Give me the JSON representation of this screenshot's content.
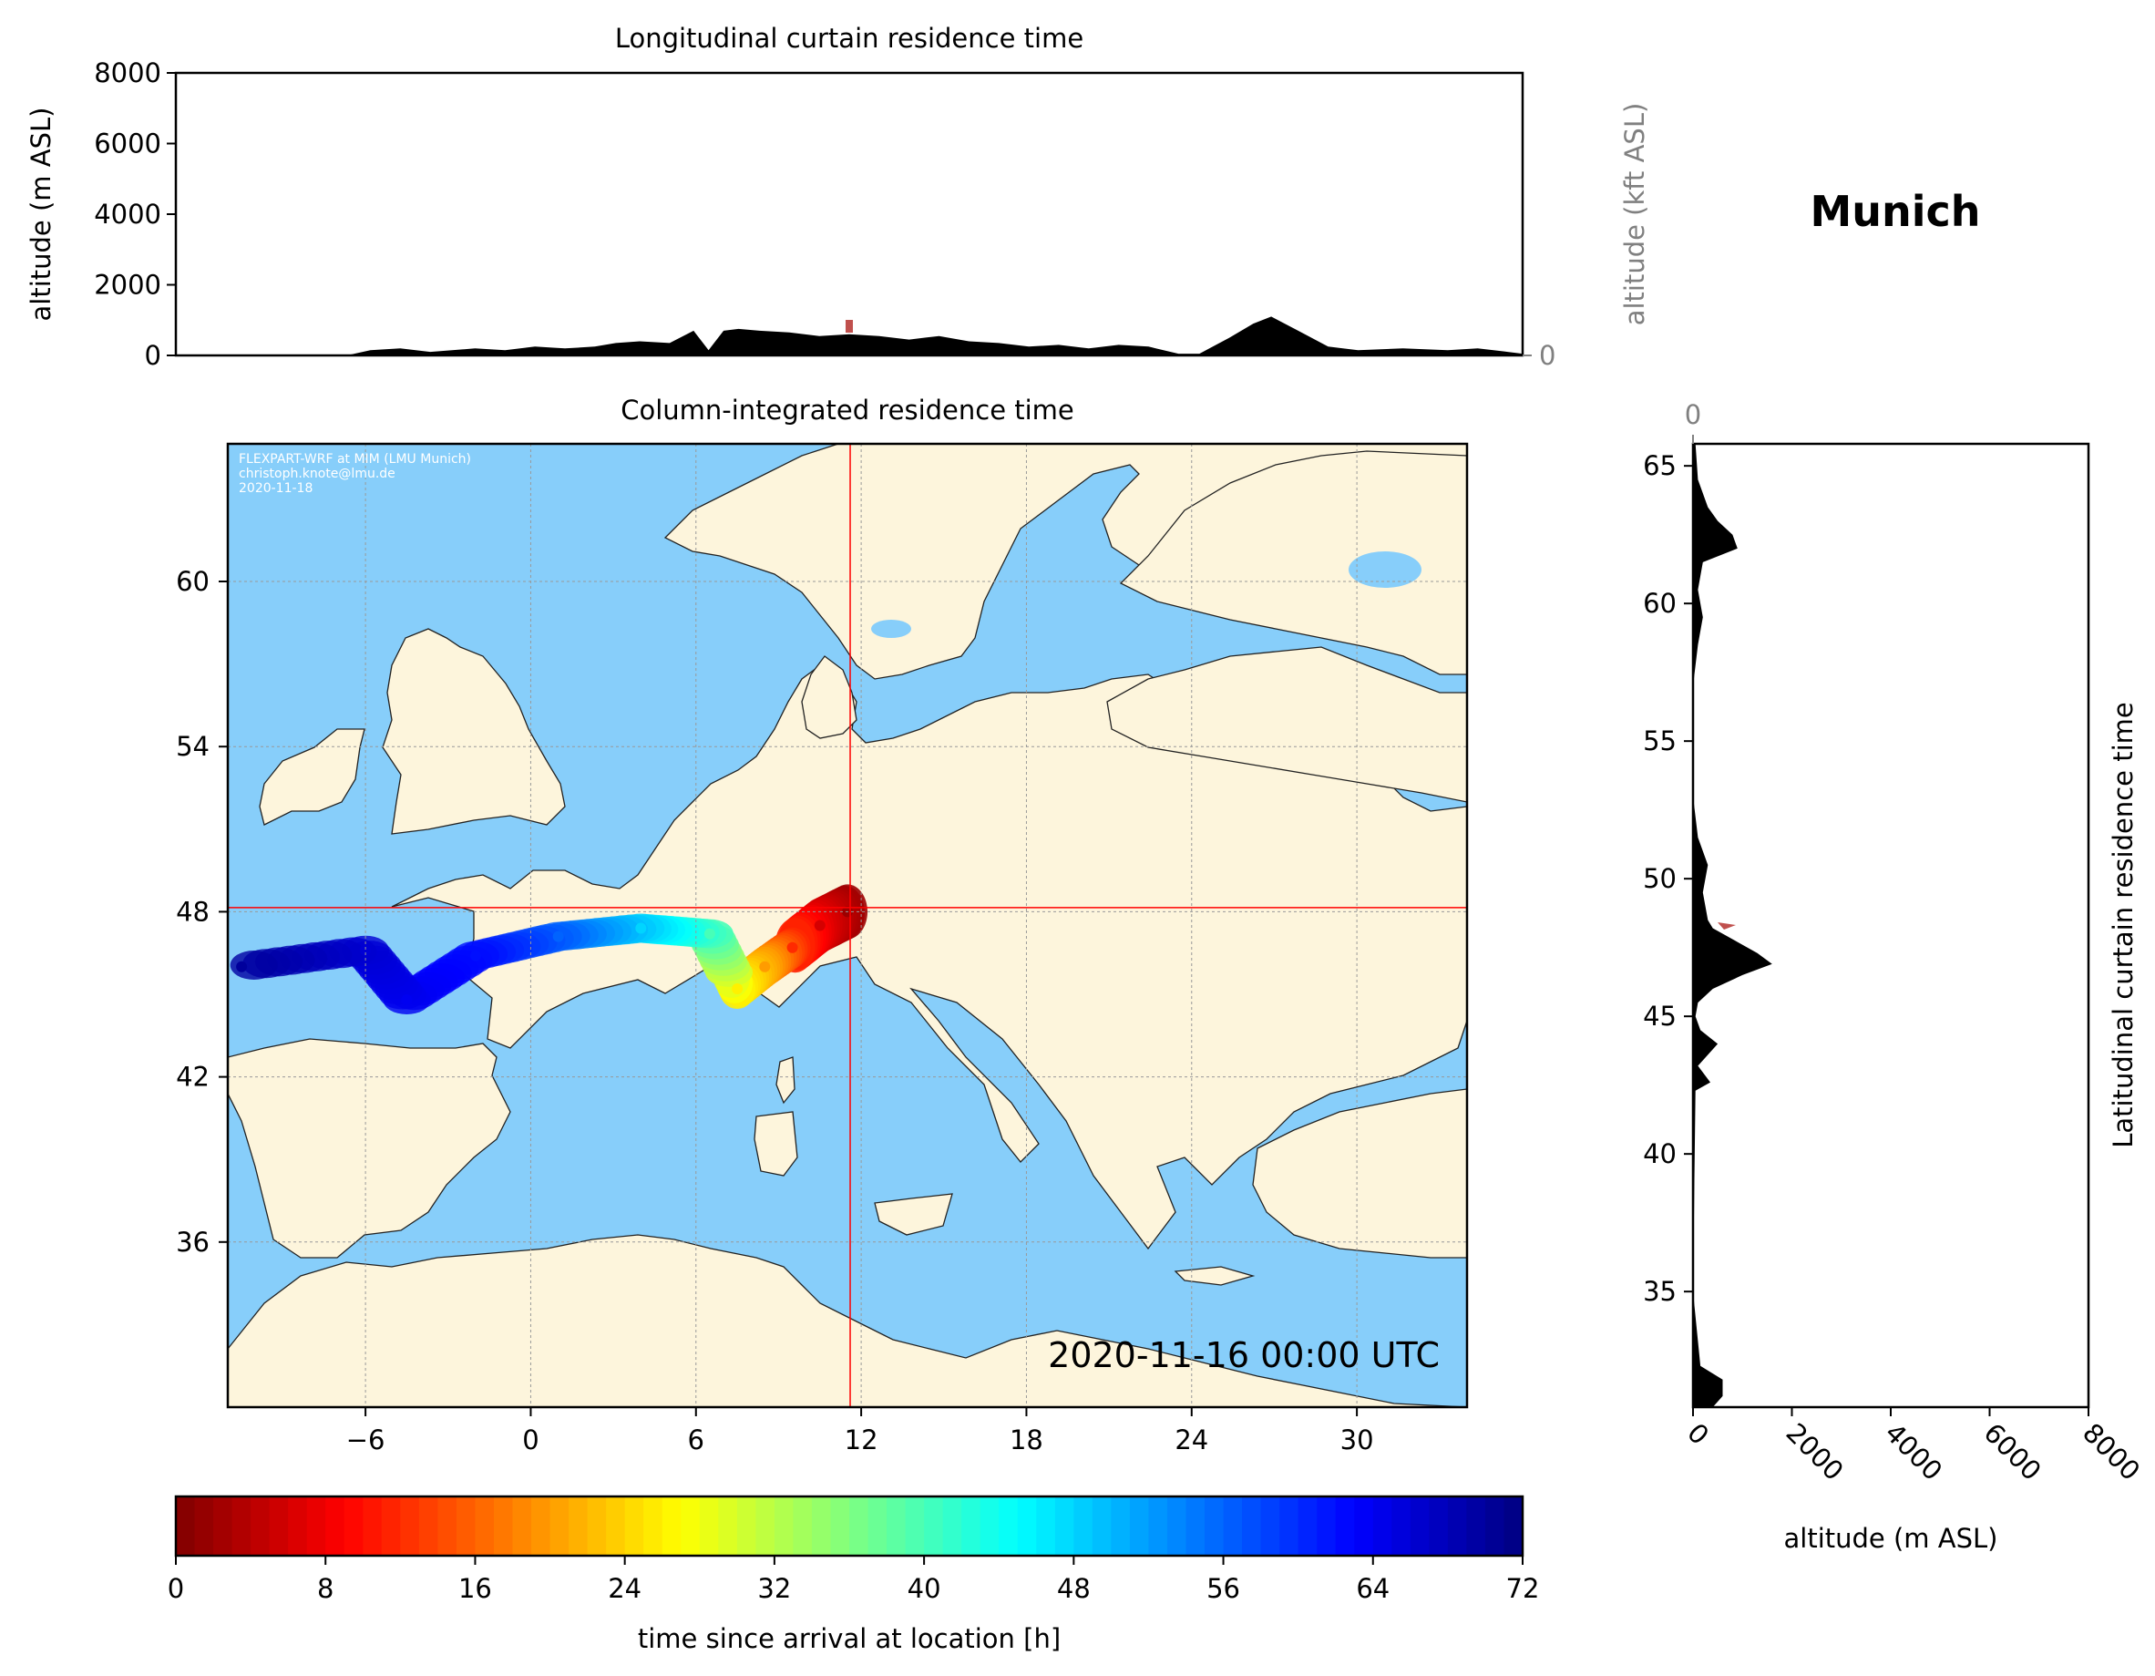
{
  "location_title": "Munich",
  "colors": {
    "ocean": "#87cefa",
    "land": "#fdf5dc",
    "terrain": "#000000",
    "crosshair": "#ff0000",
    "kft_axis": "#808080",
    "inset_text": "#ffffff"
  },
  "inset_credits": [
    "FLEXPART-WRF at MIM (LMU Munich)",
    "christoph.knote@lmu.de",
    "2020-11-18"
  ],
  "timestamp": "2020-11-16 00:00 UTC",
  "chart_data": [
    {
      "id": "longitudinal",
      "type": "area",
      "title": "Longitudinal curtain residence time",
      "xlabel": "",
      "ylabel": "altitude (m ASL)",
      "ylim": [
        0,
        8000
      ],
      "yticks": [
        0,
        2000,
        4000,
        6000,
        8000
      ],
      "y2label": "altitude (kft ASL)",
      "y2lim": [
        -5,
        100
      ],
      "y2ticks": [
        0,
        50,
        100
      ],
      "xlim": [
        -11,
        34
      ],
      "grid": "horizontal",
      "terrain": {
        "x": [
          -11,
          -5.3,
          -4.5,
          -3.5,
          -2.5,
          -1,
          0,
          1,
          2,
          3,
          3.7,
          4.5,
          5.5,
          6.3,
          6.8,
          7.3,
          7.8,
          8.5,
          9.5,
          10.5,
          11.5,
          12.5,
          13.5,
          14.5,
          15.5,
          16.5,
          17.5,
          18.5,
          19.5,
          20.5,
          21.5,
          22.5,
          23.2,
          24.2,
          25,
          25.6,
          26.5,
          27.5,
          28.5,
          30,
          31.5,
          32.5,
          33.5,
          34
        ],
        "alt": [
          0,
          0,
          150,
          200,
          100,
          200,
          150,
          250,
          200,
          250,
          350,
          400,
          350,
          700,
          150,
          700,
          750,
          700,
          650,
          550,
          600,
          550,
          450,
          550,
          400,
          350,
          250,
          300,
          200,
          300,
          250,
          50,
          50,
          500,
          900,
          1100,
          700,
          250,
          150,
          200,
          150,
          200,
          100,
          50
        ]
      },
      "residence_marker": {
        "lon": 11.5,
        "alt": 800
      }
    },
    {
      "id": "column",
      "type": "heatmap",
      "title": "Column-integrated residence time",
      "xlabel": "",
      "ylabel": "",
      "xlim": [
        -11,
        34
      ],
      "ylim": [
        30,
        65
      ],
      "xticks": [
        -6,
        0,
        6,
        12,
        18,
        24,
        30
      ],
      "yticks": [
        36,
        42,
        48,
        54,
        60
      ],
      "station": {
        "name": "Munich",
        "lon": 11.6,
        "lat": 48.15
      },
      "plume": [
        {
          "lon": 11.5,
          "lat": 48.0,
          "hours": 2
        },
        {
          "lon": 10.5,
          "lat": 47.5,
          "hours": 6
        },
        {
          "lon": 9.5,
          "lat": 46.7,
          "hours": 12
        },
        {
          "lon": 8.5,
          "lat": 46.0,
          "hours": 20
        },
        {
          "lon": 7.5,
          "lat": 45.2,
          "hours": 26
        },
        {
          "lon": 6.5,
          "lat": 47.2,
          "hours": 40
        },
        {
          "lon": 4.0,
          "lat": 47.4,
          "hours": 48
        },
        {
          "lon": 1.0,
          "lat": 47.1,
          "hours": 56
        },
        {
          "lon": -2.0,
          "lat": 46.4,
          "hours": 62
        },
        {
          "lon": -4.5,
          "lat": 44.8,
          "hours": 64
        },
        {
          "lon": -6.0,
          "lat": 46.6,
          "hours": 66
        },
        {
          "lon": -10.5,
          "lat": 46.0,
          "hours": 70
        }
      ]
    },
    {
      "id": "latitudinal",
      "type": "area",
      "title": "",
      "xlabel": "altitude (m ASL)",
      "xlim": [
        0,
        8000
      ],
      "xticks": [
        0,
        2000,
        4000,
        6000,
        8000
      ],
      "x2lim": [
        -5,
        100
      ],
      "x2ticks": [
        0,
        50,
        100
      ],
      "ylabel": "Latitudinal curtain residence time",
      "ylim": [
        30.8,
        65.8
      ],
      "yticks": [
        35,
        40,
        45,
        50,
        55,
        60,
        65
      ],
      "grid": "vertical",
      "terrain": {
        "lat": [
          30.8,
          31.2,
          31.8,
          32.3,
          35,
          42.3,
          42.6,
          43.2,
          43.6,
          44.0,
          44.5,
          45.0,
          45.5,
          46.0,
          46.5,
          46.9,
          47.3,
          47.7,
          48.2,
          48.5,
          49.5,
          50.5,
          51.5,
          53.0,
          57.0,
          58.5,
          59.5,
          60.5,
          61.5,
          62.0,
          62.5,
          63.0,
          63.5,
          64.5,
          65.8
        ],
        "alt": [
          400,
          600,
          600,
          150,
          0,
          50,
          350,
          100,
          300,
          500,
          150,
          50,
          100,
          400,
          1000,
          1600,
          1300,
          900,
          400,
          300,
          200,
          300,
          100,
          0,
          0,
          100,
          200,
          100,
          200,
          900,
          800,
          500,
          300,
          100,
          50
        ]
      }
    }
  ],
  "colorbar": {
    "label": "time since arrival at location [h]",
    "min": 0,
    "max": 72,
    "ticks": [
      0,
      8,
      16,
      24,
      32,
      40,
      48,
      56,
      64,
      72
    ],
    "colormap": "jet_r"
  }
}
